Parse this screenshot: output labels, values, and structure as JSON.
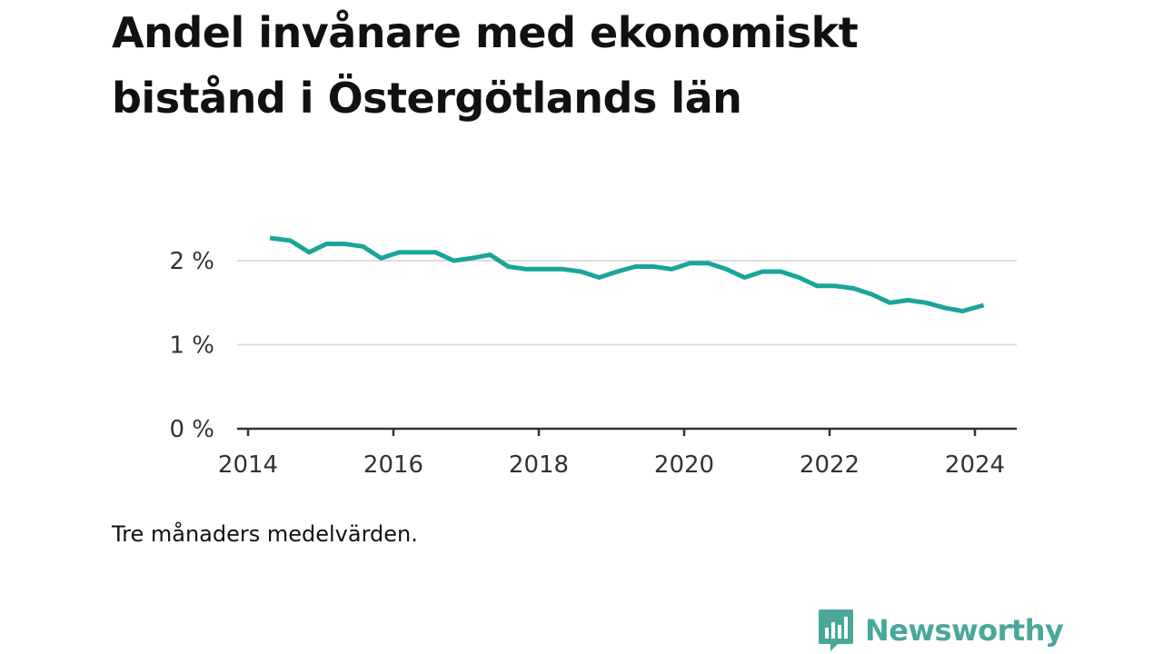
{
  "chart_data": {
    "type": "line",
    "title": "Andel invånare med ekonomiskt bistånd i Östergötlands län",
    "xlabel": "",
    "ylabel": "",
    "x_ticks": [
      "2014",
      "2016",
      "2018",
      "2020",
      "2022",
      "2024"
    ],
    "y_ticks": [
      "0 %",
      "1 %",
      "2 %"
    ],
    "xlim": [
      2014.0,
      2024.6
    ],
    "ylim": [
      0,
      2.4
    ],
    "grid": true,
    "line_color": "#1aa59b",
    "series": [
      {
        "x": [
          2014.3,
          2014.58,
          2014.84,
          2015.08,
          2015.33,
          2015.58,
          2015.83,
          2016.08,
          2016.33,
          2016.58,
          2016.83,
          2017.08,
          2017.33,
          2017.58,
          2017.83,
          2018.08,
          2018.33,
          2018.58,
          2018.83,
          2019.08,
          2019.33,
          2019.58,
          2019.83,
          2020.08,
          2020.33,
          2020.58,
          2020.83,
          2021.08,
          2021.33,
          2021.58,
          2021.83,
          2022.08,
          2022.33,
          2022.58,
          2022.83,
          2023.08,
          2023.33,
          2023.58,
          2023.83,
          2024.12
        ],
        "values": [
          2.27,
          2.24,
          2.1,
          2.2,
          2.2,
          2.17,
          2.03,
          2.1,
          2.1,
          2.1,
          2.0,
          2.03,
          2.07,
          1.93,
          1.9,
          1.9,
          1.9,
          1.87,
          1.8,
          1.87,
          1.93,
          1.93,
          1.9,
          1.97,
          1.97,
          1.9,
          1.8,
          1.87,
          1.87,
          1.8,
          1.7,
          1.7,
          1.67,
          1.6,
          1.5,
          1.53,
          1.5,
          1.44,
          1.4,
          1.47
        ]
      }
    ]
  },
  "footnote": "Tre månaders medelvärden.",
  "brand": {
    "name": "Newsworthy",
    "logo_icon": "bar-chart-speech-bubble-icon",
    "color": "#4aa79c"
  }
}
